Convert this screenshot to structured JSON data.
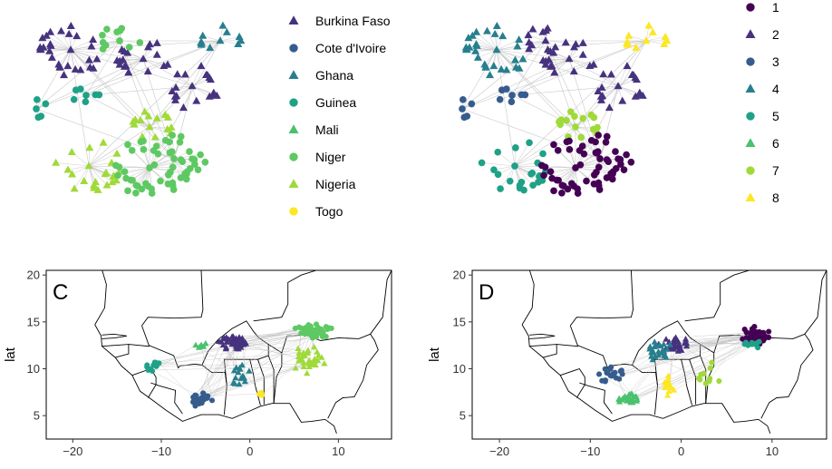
{
  "legend_country": {
    "items": [
      {
        "label": "Burkina Faso",
        "shape": "triangle",
        "color": "#46327e"
      },
      {
        "label": "Cote d'Ivoire",
        "shape": "circle",
        "color": "#365c8d"
      },
      {
        "label": "Ghana",
        "shape": "triangle",
        "color": "#277f8e"
      },
      {
        "label": "Guinea",
        "shape": "circle",
        "color": "#1fa187"
      },
      {
        "label": "Mali",
        "shape": "triangle",
        "color": "#4ac16d"
      },
      {
        "label": "Niger",
        "shape": "circle",
        "color": "#5ec962"
      },
      {
        "label": "Nigeria",
        "shape": "triangle",
        "color": "#a0da39"
      },
      {
        "label": "Togo",
        "shape": "circle",
        "color": "#fde725"
      }
    ]
  },
  "legend_cluster": {
    "items": [
      {
        "label": "1",
        "shape": "circle",
        "color": "#440154"
      },
      {
        "label": "2",
        "shape": "triangle",
        "color": "#46327e"
      },
      {
        "label": "3",
        "shape": "circle",
        "color": "#365c8d"
      },
      {
        "label": "4",
        "shape": "triangle",
        "color": "#277f8e"
      },
      {
        "label": "5",
        "shape": "circle",
        "color": "#1fa187"
      },
      {
        "label": "6",
        "shape": "triangle",
        "color": "#4ac16d"
      },
      {
        "label": "7",
        "shape": "circle",
        "color": "#a0da39"
      },
      {
        "label": "8",
        "shape": "triangle",
        "color": "#fde725"
      }
    ]
  },
  "chart_data": [
    {
      "panel": "C",
      "type": "scatter",
      "xlabel": "",
      "ylabel": "lat",
      "xlim": [
        -23,
        16
      ],
      "ylim": [
        2.5,
        20.5
      ],
      "xticks": [
        "−20",
        "−10",
        "0",
        "10"
      ],
      "yticks": [
        "5",
        "10",
        "15",
        "20"
      ],
      "color_by": "country",
      "groups": [
        {
          "name": "Burkina Faso",
          "color": "#46327e",
          "shape": "triangle",
          "center": [
            -1.6,
            12.8
          ],
          "spread": [
            2.0,
            1.0
          ],
          "n": 55
        },
        {
          "name": "Cote d'Ivoire",
          "color": "#365c8d",
          "shape": "circle",
          "center": [
            -5.6,
            6.8
          ],
          "spread": [
            1.6,
            1.0
          ],
          "n": 28
        },
        {
          "name": "Ghana",
          "color": "#277f8e",
          "shape": "triangle",
          "center": [
            -1.2,
            9.6
          ],
          "spread": [
            1.3,
            1.8
          ],
          "n": 16
        },
        {
          "name": "Guinea",
          "color": "#1fa187",
          "shape": "circle",
          "center": [
            -10.8,
            10.2
          ],
          "spread": [
            1.6,
            1.2
          ],
          "n": 12
        },
        {
          "name": "Mali",
          "color": "#4ac16d",
          "shape": "triangle",
          "center": [
            -5.5,
            12.5
          ],
          "spread": [
            1.0,
            0.6
          ],
          "n": 6
        },
        {
          "name": "Niger",
          "color": "#5ec962",
          "shape": "circle",
          "center": [
            7.2,
            14.0
          ],
          "spread": [
            2.6,
            0.8
          ],
          "n": 60
        },
        {
          "name": "Nigeria",
          "color": "#a0da39",
          "shape": "triangle",
          "center": [
            6.5,
            11.0
          ],
          "spread": [
            2.2,
            2.2
          ],
          "n": 34
        },
        {
          "name": "Togo",
          "color": "#fde725",
          "shape": "circle",
          "center": [
            1.2,
            7.4
          ],
          "spread": [
            0.4,
            0.5
          ],
          "n": 4
        }
      ]
    },
    {
      "panel": "D",
      "type": "scatter",
      "xlabel": "",
      "ylabel": "lat",
      "xlim": [
        -23,
        16
      ],
      "ylim": [
        2.5,
        20.5
      ],
      "xticks": [
        "−20",
        "−10",
        "0",
        "10"
      ],
      "yticks": [
        "5",
        "10",
        "15",
        "20"
      ],
      "color_by": "cluster",
      "groups": [
        {
          "name": "1",
          "color": "#440154",
          "shape": "circle",
          "center": [
            8.2,
            13.5
          ],
          "spread": [
            2.2,
            1.2
          ],
          "n": 55
        },
        {
          "name": "2",
          "color": "#46327e",
          "shape": "triangle",
          "center": [
            -0.5,
            12.6
          ],
          "spread": [
            2.2,
            1.1
          ],
          "n": 30
        },
        {
          "name": "3",
          "color": "#365c8d",
          "shape": "circle",
          "center": [
            -8.0,
            9.5
          ],
          "spread": [
            2.4,
            1.5
          ],
          "n": 18
        },
        {
          "name": "4",
          "color": "#277f8e",
          "shape": "triangle",
          "center": [
            -2.5,
            12.0
          ],
          "spread": [
            2.0,
            1.5
          ],
          "n": 26
        },
        {
          "name": "5",
          "color": "#1fa187",
          "shape": "circle",
          "center": [
            7.8,
            12.5
          ],
          "spread": [
            1.2,
            1.2
          ],
          "n": 10
        },
        {
          "name": "6",
          "color": "#4ac16d",
          "shape": "triangle",
          "center": [
            -5.8,
            6.8
          ],
          "spread": [
            1.5,
            0.8
          ],
          "n": 24
        },
        {
          "name": "7",
          "color": "#a0da39",
          "shape": "circle",
          "center": [
            3.0,
            9.5
          ],
          "spread": [
            1.6,
            1.8
          ],
          "n": 10
        },
        {
          "name": "8",
          "color": "#fde725",
          "shape": "triangle",
          "center": [
            -1.5,
            8.3
          ],
          "spread": [
            1.0,
            1.3
          ],
          "n": 12
        }
      ]
    }
  ],
  "panel_tags": {
    "c": "C",
    "d": "D"
  }
}
